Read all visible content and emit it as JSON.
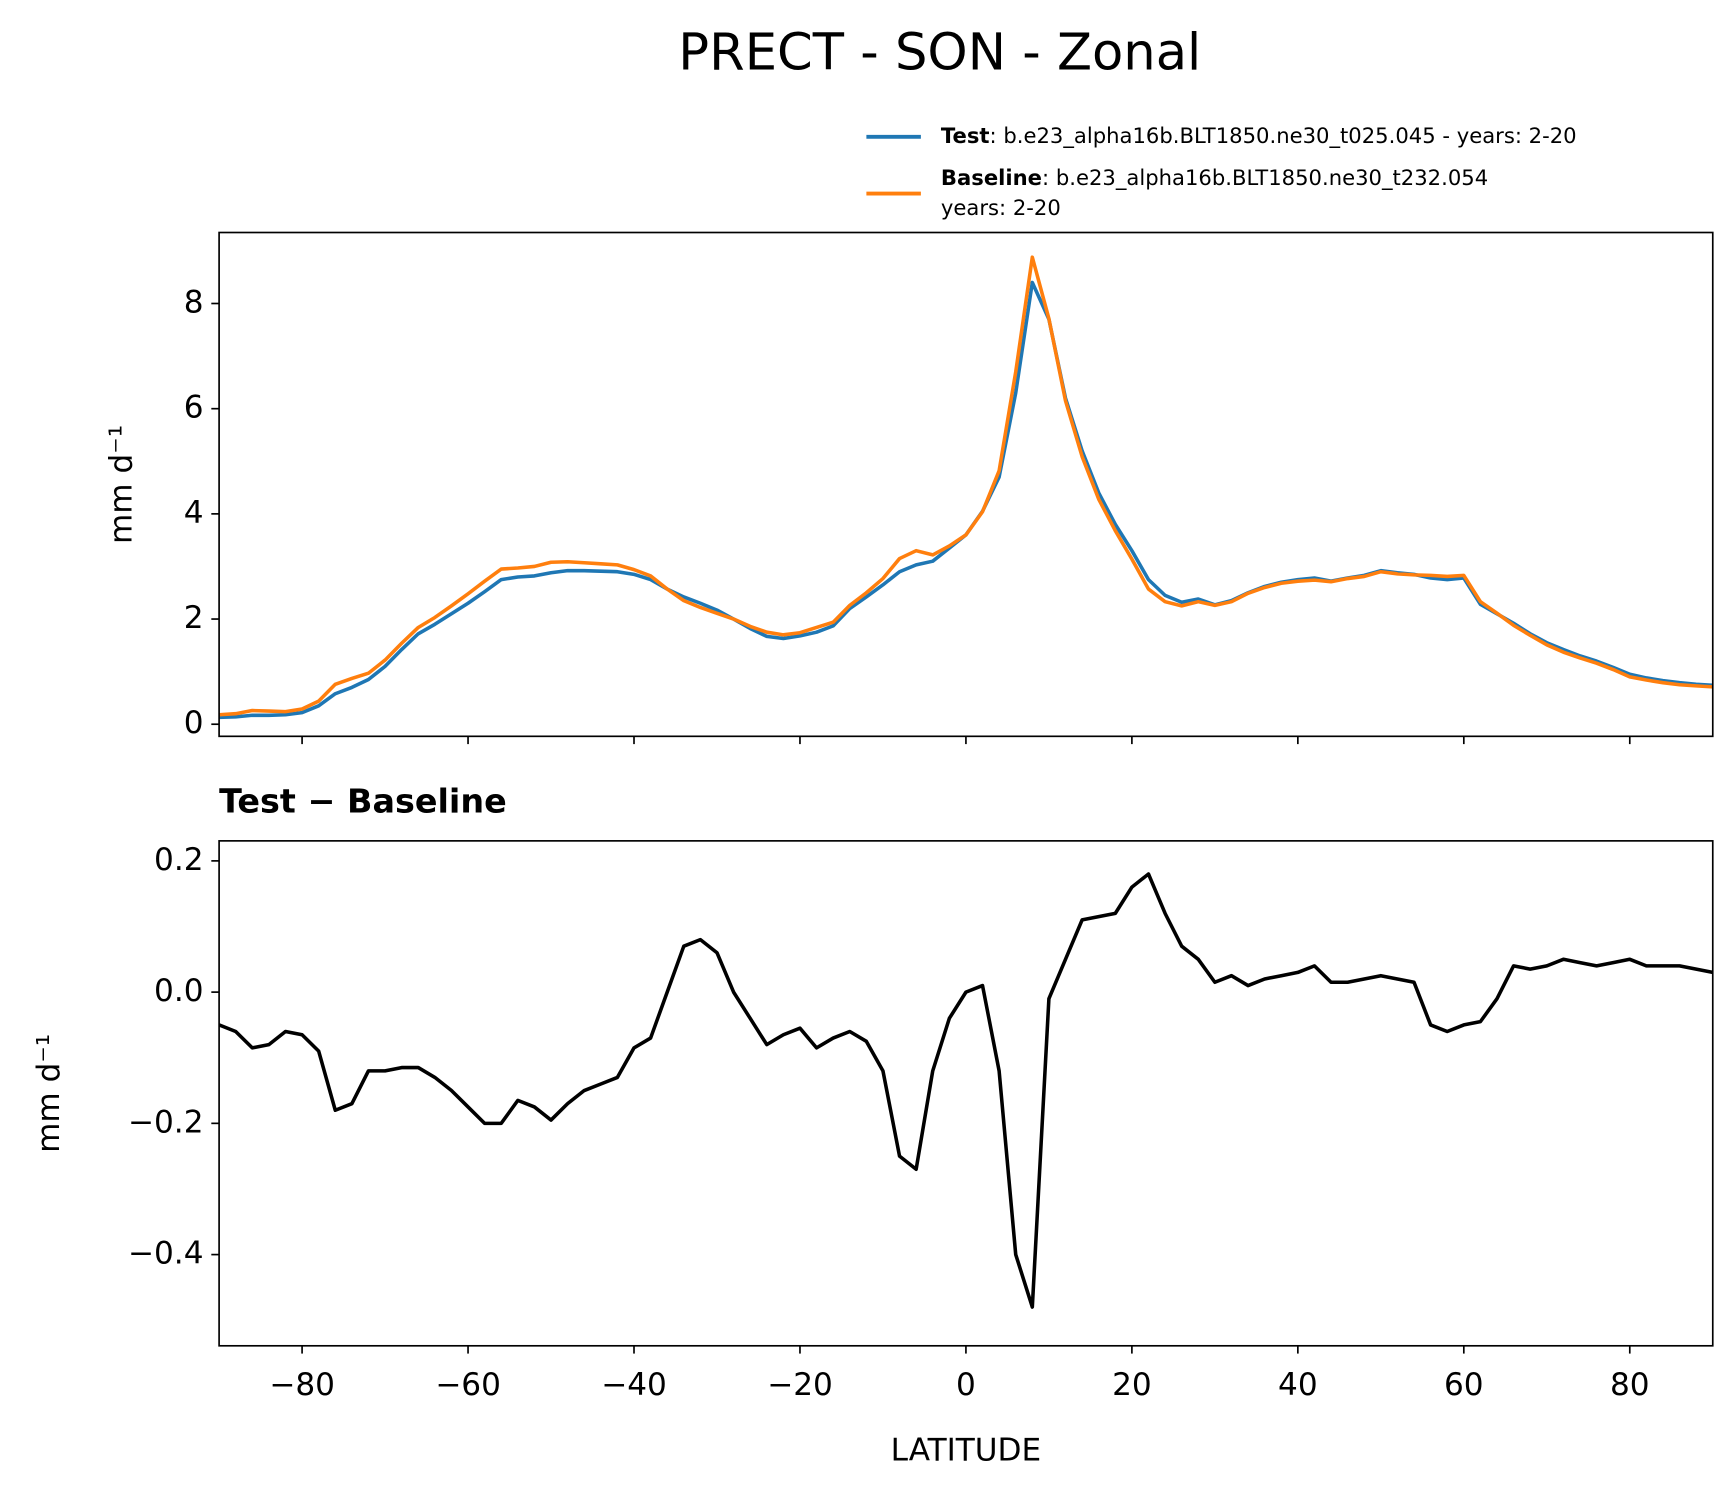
{
  "chart_data": [
    {
      "type": "line",
      "title": "PRECT - SON - Zonal",
      "ylabel": "mm d⁻¹",
      "xlim": [
        -90,
        90
      ],
      "ylim": [
        -0.23,
        9.35
      ],
      "yticks": [
        0,
        2,
        4,
        6,
        8
      ],
      "x": [
        -90,
        -88,
        -86,
        -84,
        -82,
        -80,
        -78,
        -76,
        -74,
        -72,
        -70,
        -68,
        -66,
        -64,
        -62,
        -60,
        -58,
        -56,
        -54,
        -52,
        -50,
        -48,
        -46,
        -44,
        -42,
        -40,
        -38,
        -36,
        -34,
        -32,
        -30,
        -28,
        -26,
        -24,
        -22,
        -20,
        -18,
        -16,
        -14,
        -12,
        -10,
        -8,
        -6,
        -4,
        -2,
        0,
        2,
        4,
        6,
        8,
        10,
        12,
        14,
        16,
        18,
        20,
        22,
        24,
        26,
        28,
        30,
        32,
        34,
        36,
        38,
        40,
        42,
        44,
        46,
        48,
        50,
        52,
        54,
        56,
        58,
        60,
        62,
        64,
        66,
        68,
        70,
        72,
        74,
        76,
        78,
        80,
        82,
        84,
        86,
        88,
        90
      ],
      "series": [
        {
          "name": "Test",
          "description": [
            ": b.e23_alpha16b.BLT1850.ne30_t025.045 - years: 2-20"
          ],
          "color": "#1f77b4",
          "values": [
            0.13,
            0.14,
            0.17,
            0.17,
            0.18,
            0.22,
            0.35,
            0.58,
            0.7,
            0.85,
            1.1,
            1.42,
            1.72,
            1.9,
            2.1,
            2.3,
            2.52,
            2.75,
            2.8,
            2.82,
            2.88,
            2.92,
            2.92,
            2.91,
            2.9,
            2.85,
            2.75,
            2.57,
            2.42,
            2.3,
            2.17,
            2.0,
            1.82,
            1.67,
            1.63,
            1.68,
            1.75,
            1.87,
            2.2,
            2.42,
            2.65,
            2.9,
            3.03,
            3.1,
            3.35,
            3.6,
            4.05,
            4.7,
            6.3,
            8.4,
            7.7,
            6.2,
            5.2,
            4.4,
            3.8,
            3.3,
            2.75,
            2.45,
            2.32,
            2.38,
            2.27,
            2.35,
            2.5,
            2.62,
            2.7,
            2.75,
            2.78,
            2.72,
            2.78,
            2.83,
            2.92,
            2.88,
            2.85,
            2.78,
            2.75,
            2.78,
            2.28,
            2.1,
            1.92,
            1.72,
            1.55,
            1.42,
            1.3,
            1.2,
            1.08,
            0.95,
            0.88,
            0.83,
            0.79,
            0.76,
            0.74
          ]
        },
        {
          "name": "Baseline",
          "description": [
            ": b.e23_alpha16b.BLT1850.ne30_t232.054",
            "years: 2-20"
          ],
          "color": "#ff7f0e",
          "values": [
            0.18,
            0.2,
            0.26,
            0.25,
            0.24,
            0.29,
            0.44,
            0.76,
            0.87,
            0.97,
            1.22,
            1.54,
            1.84,
            2.03,
            2.25,
            2.48,
            2.72,
            2.95,
            2.97,
            3.0,
            3.08,
            3.09,
            3.07,
            3.05,
            3.03,
            2.94,
            2.82,
            2.57,
            2.35,
            2.22,
            2.11,
            2.0,
            1.86,
            1.75,
            1.7,
            1.74,
            1.84,
            1.94,
            2.26,
            2.5,
            2.77,
            3.15,
            3.3,
            3.22,
            3.39,
            3.6,
            4.04,
            4.82,
            6.7,
            8.88,
            7.71,
            6.15,
            5.09,
            4.28,
            3.68,
            3.14,
            2.57,
            2.33,
            2.25,
            2.33,
            2.26,
            2.33,
            2.49,
            2.6,
            2.68,
            2.72,
            2.74,
            2.71,
            2.77,
            2.81,
            2.9,
            2.86,
            2.84,
            2.83,
            2.81,
            2.83,
            2.33,
            2.11,
            1.88,
            1.69,
            1.51,
            1.37,
            1.26,
            1.16,
            1.04,
            0.9,
            0.84,
            0.79,
            0.75,
            0.73,
            0.71
          ]
        }
      ]
    },
    {
      "type": "line",
      "title": "Test − Baseline",
      "ylabel": "mm d⁻¹",
      "xlabel": "LATITUDE",
      "xlim": [
        -90,
        90
      ],
      "ylim": [
        -0.539,
        0.2305
      ],
      "xticks": [
        {
          "value": -80,
          "label": "−80"
        },
        {
          "value": -60,
          "label": "−60"
        },
        {
          "value": -40,
          "label": "−40"
        },
        {
          "value": -20,
          "label": "−20"
        },
        0,
        20,
        40,
        60,
        80
      ],
      "yticks": [
        {
          "value": -0.4,
          "label": "−0.4"
        },
        {
          "value": -0.2,
          "label": "−0.2"
        },
        {
          "value": 0,
          "label": "0.0"
        },
        0.2
      ],
      "x": [
        -90,
        -88,
        -86,
        -84,
        -82,
        -80,
        -78,
        -76,
        -74,
        -72,
        -70,
        -68,
        -66,
        -64,
        -62,
        -60,
        -58,
        -56,
        -54,
        -52,
        -50,
        -48,
        -46,
        -44,
        -42,
        -40,
        -38,
        -36,
        -34,
        -32,
        -30,
        -28,
        -26,
        -24,
        -22,
        -20,
        -18,
        -16,
        -14,
        -12,
        -10,
        -8,
        -6,
        -4,
        -2,
        0,
        2,
        4,
        6,
        8,
        10,
        12,
        14,
        16,
        18,
        20,
        22,
        24,
        26,
        28,
        30,
        32,
        34,
        36,
        38,
        40,
        42,
        44,
        46,
        48,
        50,
        52,
        54,
        56,
        58,
        60,
        62,
        64,
        66,
        68,
        70,
        72,
        74,
        76,
        78,
        80,
        82,
        84,
        86,
        88,
        90
      ],
      "series": [
        {
          "color": "#000000",
          "values": [
            -0.05,
            -0.06,
            -0.085,
            -0.08,
            -0.06,
            -0.065,
            -0.09,
            -0.18,
            -0.17,
            -0.12,
            -0.12,
            -0.115,
            -0.115,
            -0.13,
            -0.15,
            -0.175,
            -0.2,
            -0.2,
            -0.165,
            -0.175,
            -0.195,
            -0.17,
            -0.15,
            -0.14,
            -0.13,
            -0.085,
            -0.07,
            0.0,
            0.07,
            0.08,
            0.06,
            0.0,
            -0.04,
            -0.08,
            -0.065,
            -0.055,
            -0.085,
            -0.07,
            -0.06,
            -0.075,
            -0.12,
            -0.25,
            -0.27,
            -0.12,
            -0.04,
            0.0,
            0.01,
            -0.12,
            -0.4,
            -0.48,
            -0.01,
            0.05,
            0.11,
            0.115,
            0.12,
            0.16,
            0.18,
            0.12,
            0.07,
            0.05,
            0.015,
            0.025,
            0.01,
            0.02,
            0.025,
            0.03,
            0.04,
            0.015,
            0.015,
            0.02,
            0.025,
            0.02,
            0.015,
            -0.05,
            -0.06,
            -0.05,
            -0.045,
            -0.01,
            0.04,
            0.035,
            0.04,
            0.05,
            0.045,
            0.04,
            0.045,
            0.05,
            0.04,
            0.04,
            0.04,
            0.035,
            0.03
          ]
        }
      ]
    }
  ]
}
